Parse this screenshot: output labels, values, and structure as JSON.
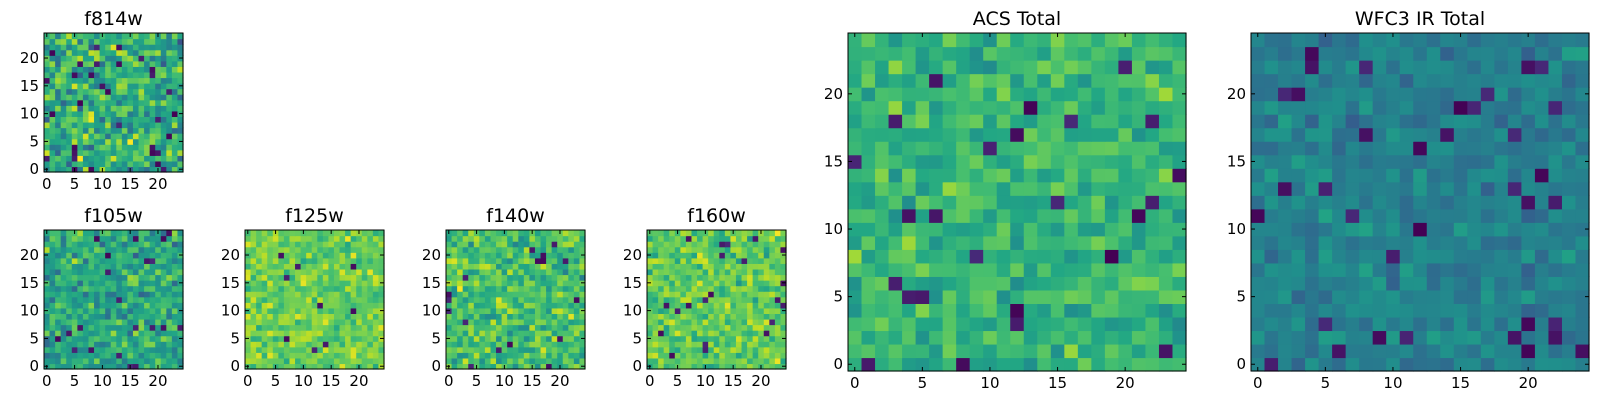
{
  "colors": {
    "colormap": "viridis",
    "background": "#ffffff",
    "axes": "#000000"
  },
  "chart_data": [
    {
      "id": "f814w",
      "type": "heatmap",
      "title": "f814w",
      "grid_size": [
        25,
        25
      ],
      "xlim": [
        -0.5,
        24.5
      ],
      "ylim": [
        -0.5,
        24.5
      ],
      "xticks": [
        0,
        5,
        10,
        15,
        20
      ],
      "yticks": [
        0,
        5,
        10,
        15,
        20
      ],
      "value_range": [
        0,
        1
      ],
      "mean": 0.62,
      "spread": 0.28,
      "dark_fraction": 0.04,
      "seed": 11
    },
    {
      "id": "f105w",
      "type": "heatmap",
      "title": "f105w",
      "grid_size": [
        25,
        25
      ],
      "xlim": [
        -0.5,
        24.5
      ],
      "ylim": [
        -0.5,
        24.5
      ],
      "xticks": [
        0,
        5,
        10,
        15,
        20
      ],
      "yticks": [
        0,
        5,
        10,
        15,
        20
      ],
      "value_range": [
        0,
        1
      ],
      "mean": 0.6,
      "spread": 0.22,
      "dark_fraction": 0.03,
      "seed": 23
    },
    {
      "id": "f125w",
      "type": "heatmap",
      "title": "f125w",
      "grid_size": [
        25,
        25
      ],
      "xlim": [
        -0.5,
        24.5
      ],
      "ylim": [
        -0.5,
        24.5
      ],
      "xticks": [
        0,
        5,
        10,
        15,
        20
      ],
      "yticks": [
        0,
        5,
        10,
        15,
        20
      ],
      "value_range": [
        0,
        1
      ],
      "mean": 0.78,
      "spread": 0.16,
      "dark_fraction": 0.02,
      "seed": 37
    },
    {
      "id": "f140w",
      "type": "heatmap",
      "title": "f140w",
      "grid_size": [
        25,
        25
      ],
      "xlim": [
        -0.5,
        24.5
      ],
      "ylim": [
        -0.5,
        24.5
      ],
      "xticks": [
        0,
        5,
        10,
        15,
        20
      ],
      "yticks": [
        0,
        5,
        10,
        15,
        20
      ],
      "value_range": [
        0,
        1
      ],
      "mean": 0.7,
      "spread": 0.2,
      "dark_fraction": 0.03,
      "seed": 41
    },
    {
      "id": "f160w",
      "type": "heatmap",
      "title": "f160w",
      "grid_size": [
        25,
        25
      ],
      "xlim": [
        -0.5,
        24.5
      ],
      "ylim": [
        -0.5,
        24.5
      ],
      "xticks": [
        0,
        5,
        10,
        15,
        20
      ],
      "yticks": [
        0,
        5,
        10,
        15,
        20
      ],
      "value_range": [
        0,
        1
      ],
      "mean": 0.76,
      "spread": 0.17,
      "dark_fraction": 0.03,
      "seed": 53
    },
    {
      "id": "acs-total",
      "type": "heatmap",
      "title": "ACS Total",
      "grid_size": [
        25,
        25
      ],
      "xlim": [
        -0.5,
        24.5
      ],
      "ylim": [
        -0.5,
        24.5
      ],
      "xticks": [
        0,
        5,
        10,
        15,
        20
      ],
      "yticks": [
        0,
        5,
        10,
        15,
        20
      ],
      "value_range": [
        0,
        1
      ],
      "mean": 0.66,
      "spread": 0.15,
      "dark_fraction": 0.025,
      "seed": 67
    },
    {
      "id": "wfc3-ir-total",
      "type": "heatmap",
      "title": "WFC3 IR Total",
      "grid_size": [
        25,
        25
      ],
      "xlim": [
        -0.5,
        24.5
      ],
      "ylim": [
        -0.5,
        24.5
      ],
      "xticks": [
        0,
        5,
        10,
        15,
        20
      ],
      "yticks": [
        0,
        5,
        10,
        15,
        20
      ],
      "value_range": [
        0,
        1
      ],
      "mean": 0.44,
      "spread": 0.11,
      "dark_fraction": 0.05,
      "seed": 79
    }
  ]
}
